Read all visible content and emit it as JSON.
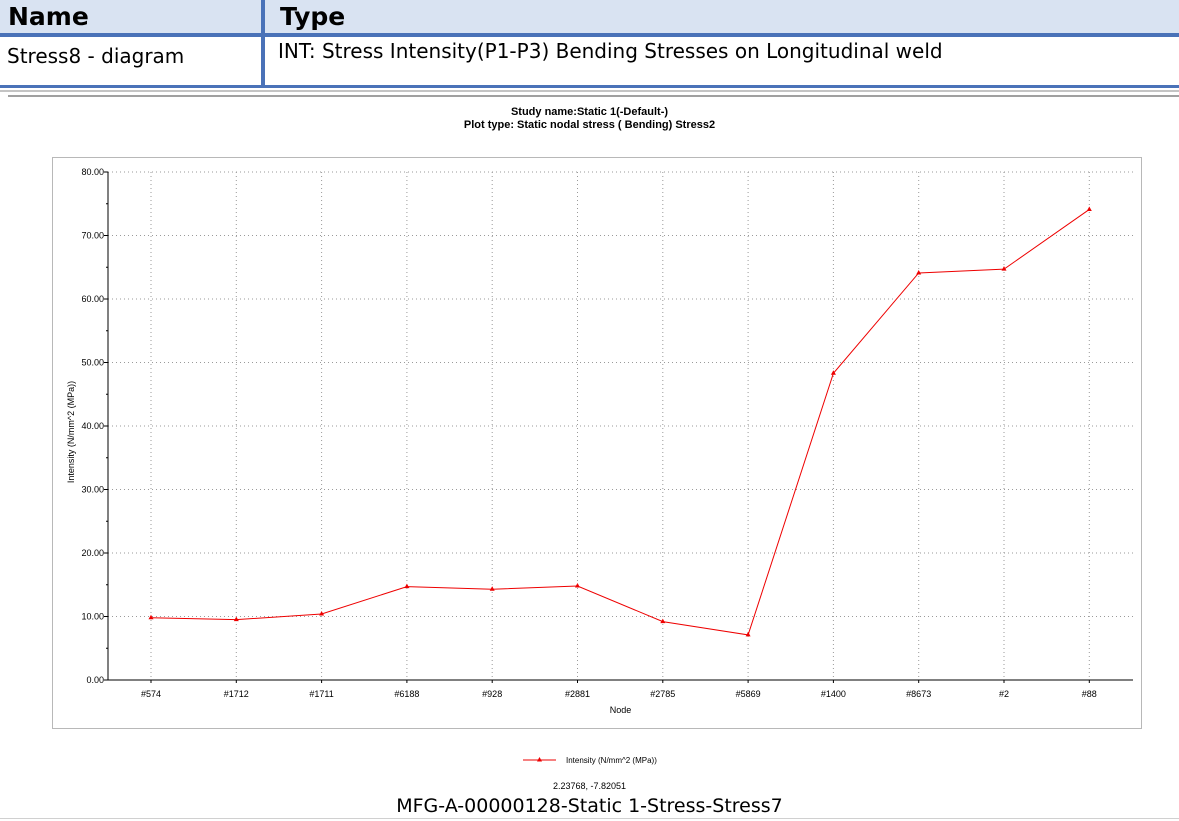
{
  "table": {
    "header_name": "Name",
    "header_type": "Type",
    "row_name": "Stress8 - diagram",
    "row_type": "INT: Stress Intensity(P1-P3) Bending Stresses on Longitudinal weld"
  },
  "study_name": "Study name:Static 1(-Default-)",
  "plot_type": "Plot type: Static nodal stress ( Bending) Stress2",
  "coords_readout": "2.23768, -7.82051",
  "caption": "MFG-A-00000128-Static 1-Stress-Stress7",
  "colors": {
    "series": "#ee0000",
    "accent": "#4a72b8"
  },
  "chart_data": {
    "type": "line",
    "xlabel": "Node",
    "ylabel": "Intensity (N/mm^2 (MPa))",
    "categories": [
      "#574",
      "#1712",
      "#1711",
      "#6188",
      "#928",
      "#2881",
      "#2785",
      "#5869",
      "#1400",
      "#8673",
      "#2",
      "#88"
    ],
    "series": [
      {
        "name": "Intensity (N/mm^2 (MPa))",
        "values": [
          9.8,
          9.5,
          10.4,
          14.7,
          14.3,
          14.8,
          9.2,
          7.1,
          48.3,
          64.1,
          64.7,
          74.1
        ]
      }
    ],
    "ylim": [
      0,
      80
    ],
    "yticks": [
      "0.00",
      "10.00",
      "20.00",
      "30.00",
      "40.00",
      "50.00",
      "60.00",
      "70.00",
      "80.00"
    ],
    "grid": true,
    "legend": "bottom-center"
  }
}
